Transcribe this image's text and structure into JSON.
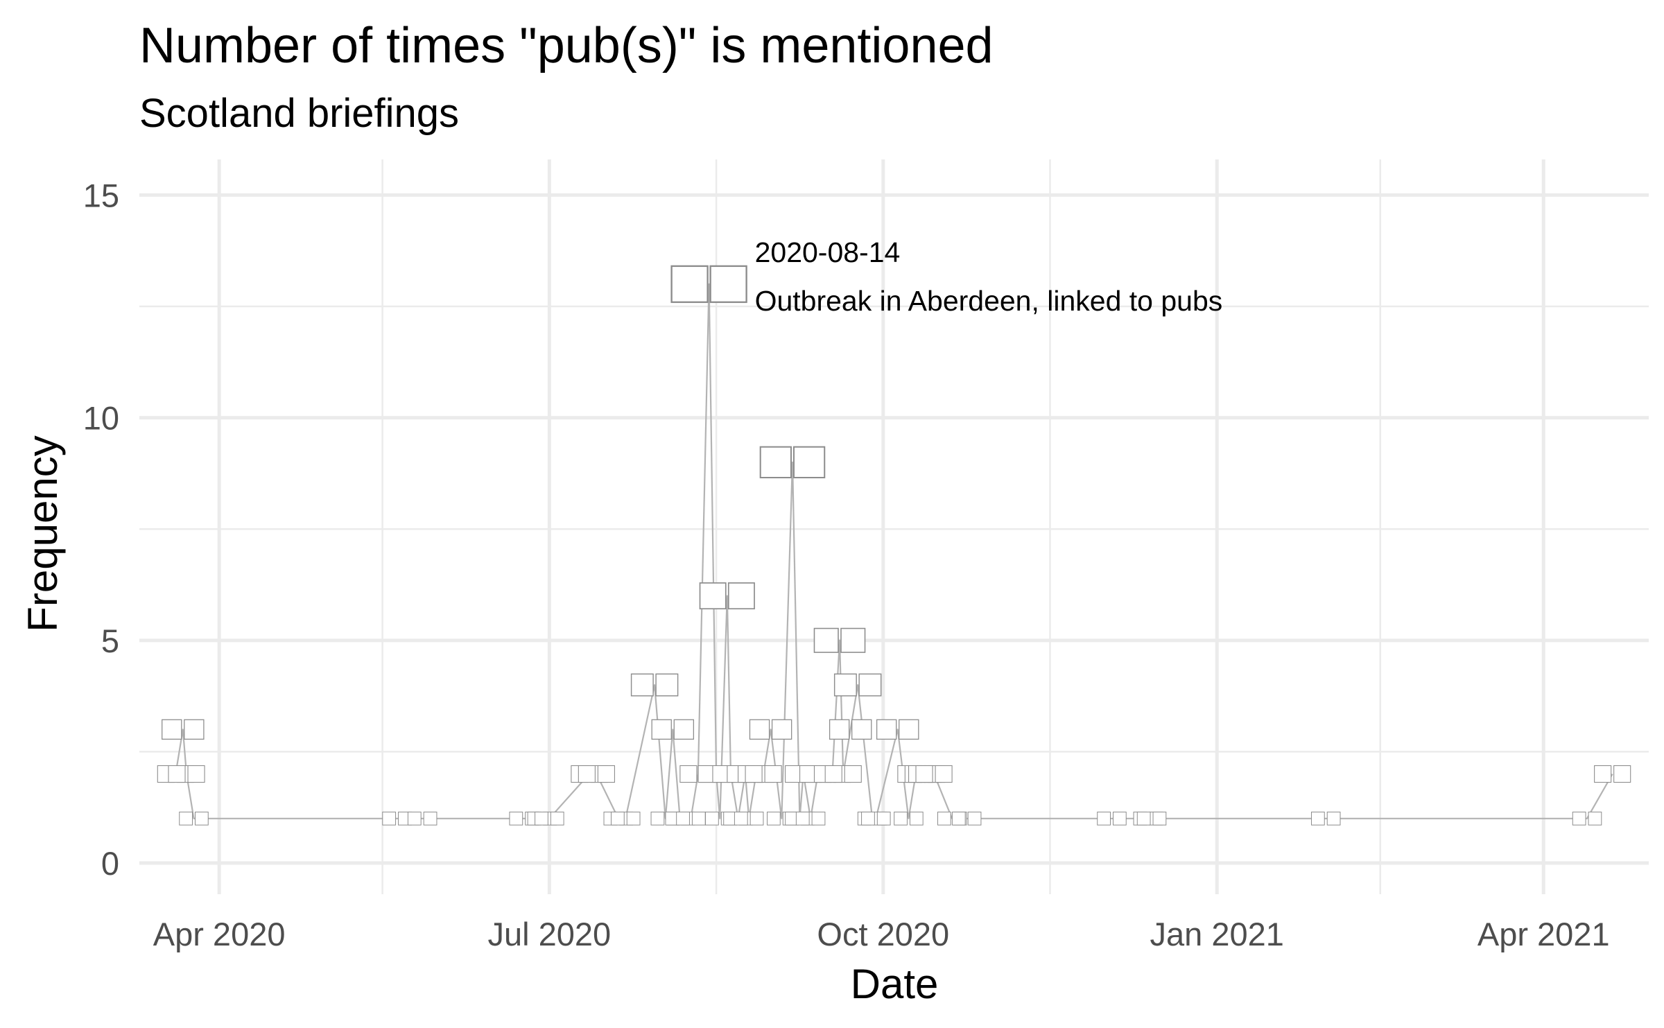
{
  "chart_data": {
    "type": "line",
    "title": "Number of times \"pub(s)\" is mentioned",
    "subtitle": "Scotland briefings",
    "xlabel": "Date",
    "ylabel": "Frequency",
    "x_ticks": [
      {
        "date": "2020-04-01",
        "label": "Apr 2020"
      },
      {
        "date": "2020-07-01",
        "label": "Jul 2020"
      },
      {
        "date": "2020-10-01",
        "label": "Oct 2020"
      },
      {
        "date": "2021-01-01",
        "label": "Jan 2021"
      },
      {
        "date": "2021-04-01",
        "label": "Apr 2021"
      }
    ],
    "x_minor_ticks": [
      "2020-05-16",
      "2020-08-16",
      "2020-11-16",
      "2021-02-15"
    ],
    "xlim": [
      "2020-03-10",
      "2021-04-30"
    ],
    "y_ticks": [
      0,
      5,
      10,
      15
    ],
    "y_minor_ticks": [
      2.5,
      7.5,
      12.5
    ],
    "ylim": [
      -0.7,
      15.8
    ],
    "grid": true,
    "line_color": "#b3b3b3",
    "label_color": "#8c8c8c",
    "series": [
      {
        "x": [
          "2020-03-20",
          "2020-03-22",
          "2020-03-23",
          "2020-03-25",
          "2020-05-20",
          "2020-05-27",
          "2020-06-24",
          "2020-06-29",
          "2020-07-01",
          "2020-07-12",
          "2020-07-14",
          "2020-07-20",
          "2020-07-22",
          "2020-07-30",
          "2020-08-02",
          "2020-08-04",
          "2020-08-06",
          "2020-08-09",
          "2020-08-11",
          "2020-08-14",
          "2020-08-16",
          "2020-08-17",
          "2020-08-19",
          "2020-08-20",
          "2020-08-22",
          "2020-08-24",
          "2020-08-25",
          "2020-08-27",
          "2020-08-29",
          "2020-08-31",
          "2020-09-03",
          "2020-09-06",
          "2020-09-08",
          "2020-09-09",
          "2020-09-11",
          "2020-09-13",
          "2020-09-17",
          "2020-09-19",
          "2020-09-20",
          "2020-09-22",
          "2020-09-24",
          "2020-09-28",
          "2020-09-29",
          "2020-10-05",
          "2020-10-08",
          "2020-10-10",
          "2020-10-12",
          "2020-10-13",
          "2020-10-15",
          "2020-10-20",
          "2020-10-24",
          "2020-12-03",
          "2020-12-13",
          "2020-12-14",
          "2021-01-31",
          "2021-04-13",
          "2021-04-20"
        ],
        "y": [
          2,
          3,
          2,
          1,
          1,
          1,
          1,
          1,
          1,
          2,
          2,
          1,
          1,
          4,
          1,
          3,
          1,
          1,
          2,
          13,
          2,
          1,
          6,
          2,
          1,
          2,
          1,
          2,
          2,
          3,
          1,
          9,
          1,
          2,
          1,
          2,
          2,
          5,
          2,
          3,
          4,
          1,
          1,
          3,
          1,
          2,
          2,
          2,
          2,
          1,
          1,
          1,
          1,
          1,
          1,
          1,
          2
        ]
      }
    ],
    "annotation": {
      "date": "2020-08-14",
      "line1": "2020-08-14",
      "line2": "Outbreak in Aberdeen, linked to pubs"
    }
  }
}
